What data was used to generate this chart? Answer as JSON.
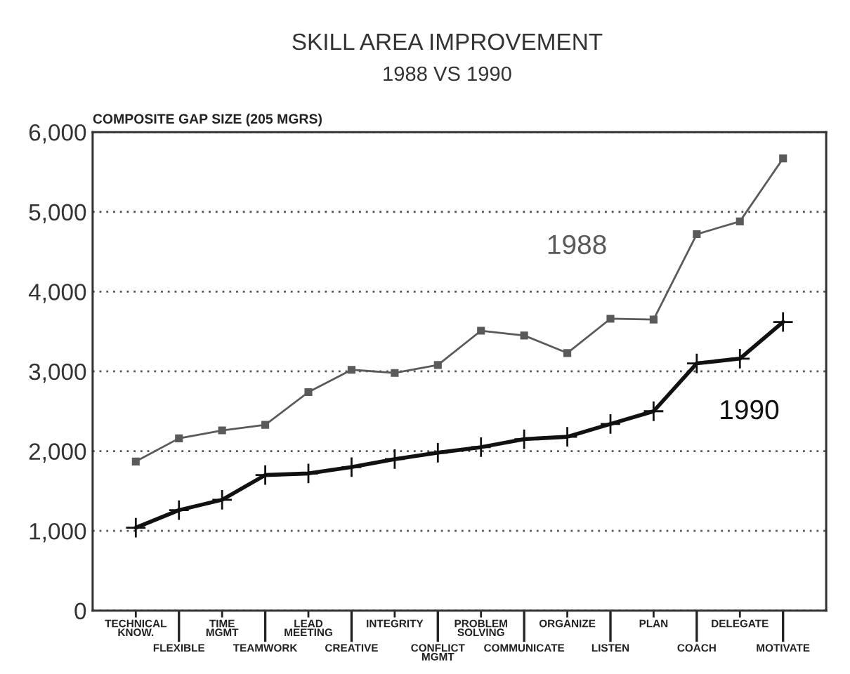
{
  "chart_data": {
    "type": "line",
    "title": "SKILL AREA IMPROVEMENT",
    "subtitle": "1988 VS 1990",
    "ylabel": "COMPOSITE GAP SIZE (205 MGRS)",
    "categories": [
      "TECHNICAL KNOW.",
      "FLEXIBLE",
      "TIME MGMT",
      "TEAMWORK",
      "LEAD MEETING",
      "CREATIVE",
      "INTEGRITY",
      "CONFLICT MGMT",
      "PROBLEM SOLVING",
      "COMMUNICATE",
      "ORGANIZE",
      "LISTEN",
      "PLAN",
      "COACH",
      "DELEGATE",
      "MOTIVATE"
    ],
    "series": [
      {
        "name": "1988",
        "color": "#5a5a5a",
        "marker": "square",
        "values": [
          1870,
          2160,
          2260,
          2330,
          2740,
          3020,
          2980,
          3080,
          3510,
          3450,
          3230,
          3660,
          3650,
          4720,
          4880,
          5670
        ]
      },
      {
        "name": "1990",
        "color": "#111111",
        "marker": "cross",
        "values": [
          1040,
          1260,
          1390,
          1700,
          1720,
          1800,
          1900,
          1980,
          2050,
          2150,
          2180,
          2340,
          2500,
          3100,
          3160,
          3620
        ]
      }
    ],
    "ylim": [
      0,
      6000
    ],
    "yticks": [
      0,
      {
        "value": 1000,
        "label": "1,000"
      },
      {
        "value": 2000,
        "label": "2,000"
      },
      {
        "value": 3000,
        "label": "3,000"
      },
      {
        "value": 4000,
        "label": "4,000"
      },
      {
        "value": 5000,
        "label": "5,000"
      },
      {
        "value": 6000,
        "label": "6,000"
      }
    ],
    "grid": "y"
  }
}
